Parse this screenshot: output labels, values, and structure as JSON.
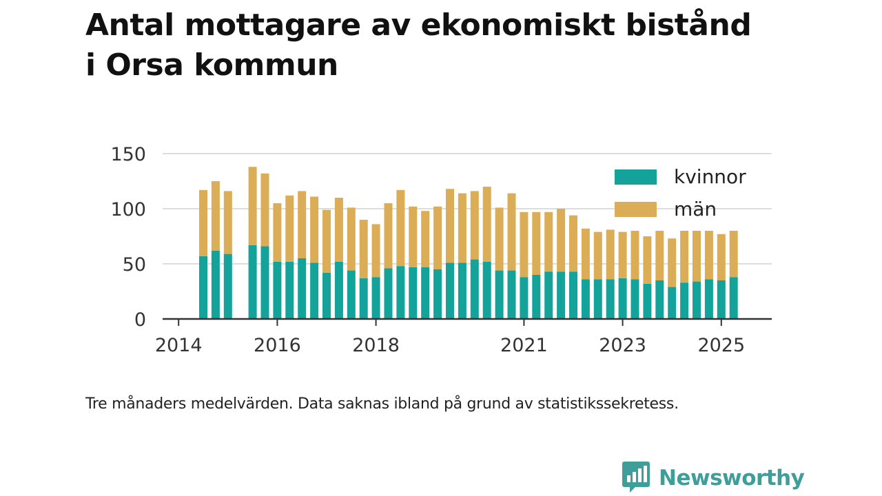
{
  "title": {
    "line1": "Antal mottagare av ekonomiskt bistånd",
    "line2": "i Orsa kommun"
  },
  "note": "Tre månaders medelvärden. Data saknas ibland på grund av statistikssekretess.",
  "brand": {
    "name": "Newsworthy",
    "icon": "newsworthy-logo-icon",
    "color": "#3e9f9a"
  },
  "colors": {
    "kvinnor": "#13a39a",
    "man": "#dcad57",
    "axis": "#333333",
    "grid": "#dddddd"
  },
  "chart_data": {
    "type": "bar",
    "stacked": true,
    "x_unit": "quarter",
    "ylim": [
      0,
      150
    ],
    "yticks": [
      0,
      50,
      100,
      150
    ],
    "xticks": [
      "2014",
      "2016",
      "2018",
      "2021",
      "2023",
      "2025"
    ],
    "grid": true,
    "legend_position": "top-right",
    "categories": [
      "2014 Q3",
      "2014 Q4",
      "2015 Q1",
      "2015 Q2",
      "2015 Q3",
      "2015 Q4",
      "2016 Q1",
      "2016 Q2",
      "2016 Q3",
      "2016 Q4",
      "2017 Q1",
      "2017 Q2",
      "2017 Q3",
      "2017 Q4",
      "2018 Q1",
      "2018 Q2",
      "2018 Q3",
      "2018 Q4",
      "2019 Q1",
      "2019 Q2",
      "2019 Q3",
      "2019 Q4",
      "2020 Q1",
      "2020 Q2",
      "2020 Q3",
      "2020 Q4",
      "2021 Q1",
      "2021 Q2",
      "2021 Q3",
      "2021 Q4",
      "2022 Q1",
      "2022 Q2",
      "2022 Q3",
      "2022 Q4",
      "2023 Q1",
      "2023 Q2",
      "2023 Q3",
      "2023 Q4",
      "2024 Q1",
      "2024 Q2",
      "2024 Q3",
      "2024 Q4",
      "2025 Q1",
      "2025 Q2"
    ],
    "series": [
      {
        "name": "kvinnor",
        "values": [
          57,
          62,
          59,
          null,
          67,
          66,
          52,
          52,
          55,
          51,
          42,
          52,
          44,
          37,
          38,
          46,
          48,
          47,
          47,
          45,
          51,
          51,
          54,
          52,
          44,
          44,
          38,
          40,
          43,
          43,
          43,
          36,
          36,
          36,
          37,
          36,
          32,
          35,
          29,
          33,
          34,
          36,
          35,
          38
        ]
      },
      {
        "name": "män",
        "values": [
          60,
          63,
          57,
          null,
          71,
          66,
          53,
          60,
          61,
          60,
          57,
          58,
          57,
          53,
          48,
          59,
          69,
          55,
          51,
          57,
          67,
          63,
          62,
          68,
          57,
          70,
          59,
          57,
          54,
          57,
          51,
          46,
          43,
          45,
          42,
          44,
          43,
          45,
          44,
          47,
          46,
          44,
          42,
          42
        ]
      }
    ]
  }
}
